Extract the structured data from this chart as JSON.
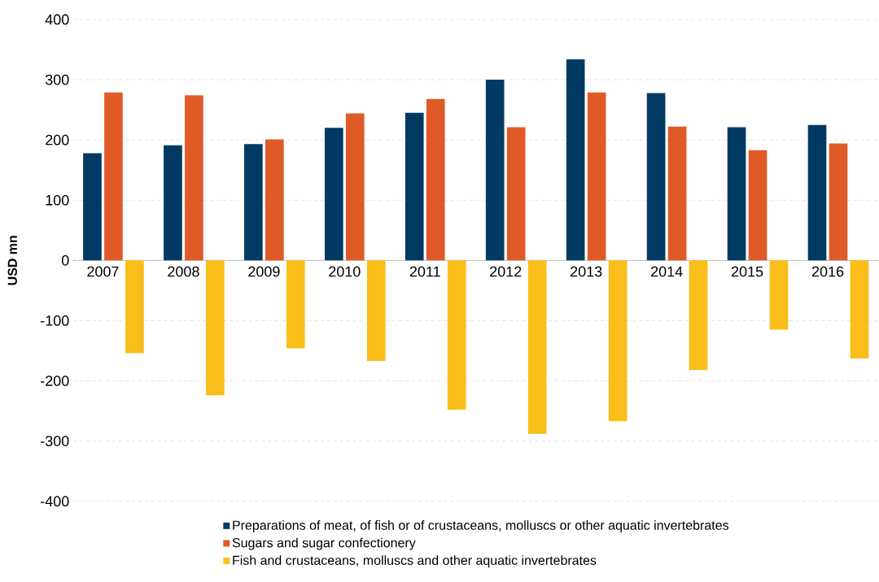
{
  "chart_data": {
    "type": "bar",
    "ylabel": "USD mn",
    "categories": [
      "2007",
      "2008",
      "2009",
      "2010",
      "2011",
      "2012",
      "2013",
      "2014",
      "2015",
      "2016"
    ],
    "series": [
      {
        "name": "Preparations of meat, of fish or of crustaceans, molluscs or other aquatic invertebrates",
        "color": "#003a63",
        "values": [
          178,
          191,
          193,
          220,
          245,
          300,
          334,
          278,
          221,
          225
        ]
      },
      {
        "name": "Sugars and sugar confectionery",
        "color": "#e05a28",
        "values": [
          279,
          274,
          201,
          244,
          268,
          221,
          279,
          222,
          183,
          194
        ]
      },
      {
        "name": "Fish and crustaceans, molluscs and other aquatic invertebrates",
        "color": "#f9be1a",
        "values": [
          -154,
          -224,
          -146,
          -167,
          -248,
          -288,
          -267,
          -182,
          -115,
          -163
        ]
      }
    ],
    "ylim": [
      -400,
      400
    ],
    "yticks": [
      -400,
      -300,
      -200,
      -100,
      0,
      100,
      200,
      300,
      400
    ],
    "grid": "y",
    "legend": "bottom"
  }
}
